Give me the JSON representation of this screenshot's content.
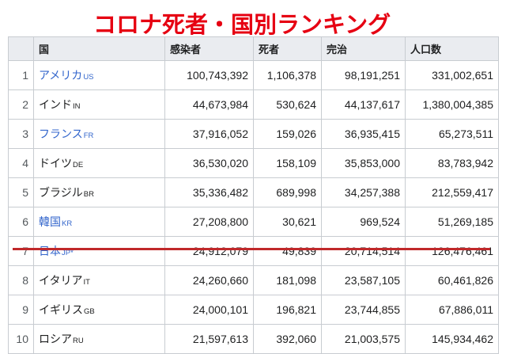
{
  "title": "コロナ死者・国別ランキング",
  "colors": {
    "title": "#e60012",
    "link": "#3366cc",
    "highlight_line": "#c0282a",
    "header_bg": "#eaecf0"
  },
  "table": {
    "headers": [
      "",
      "国",
      "感染者",
      "死者",
      "完治",
      "人口数"
    ],
    "rows": [
      {
        "rank": "1",
        "country": "アメリカ",
        "code": "US",
        "linked": true,
        "cases": "100,743,392",
        "deaths": "1,106,378",
        "recovered": "98,191,251",
        "population": "331,002,651"
      },
      {
        "rank": "2",
        "country": "インド",
        "code": "IN",
        "linked": false,
        "cases": "44,673,984",
        "deaths": "530,624",
        "recovered": "44,137,617",
        "population": "1,380,004,385"
      },
      {
        "rank": "3",
        "country": "フランス",
        "code": "FR",
        "linked": true,
        "cases": "37,916,052",
        "deaths": "159,026",
        "recovered": "36,935,415",
        "population": "65,273,511"
      },
      {
        "rank": "4",
        "country": "ドイツ",
        "code": "DE",
        "linked": false,
        "cases": "36,530,020",
        "deaths": "158,109",
        "recovered": "35,853,000",
        "population": "83,783,942"
      },
      {
        "rank": "5",
        "country": "ブラジル",
        "code": "BR",
        "linked": false,
        "cases": "35,336,482",
        "deaths": "689,998",
        "recovered": "34,257,388",
        "population": "212,559,417"
      },
      {
        "rank": "6",
        "country": "韓国",
        "code": "KR",
        "linked": true,
        "cases": "27,208,800",
        "deaths": "30,621",
        "recovered": "969,524",
        "population": "51,269,185"
      },
      {
        "rank": "7",
        "country": "日本",
        "code": "JP*",
        "linked": true,
        "cases": "24,912,079",
        "deaths": "49,839",
        "recovered": "20,714,514",
        "population": "126,476,461"
      },
      {
        "rank": "8",
        "country": "イタリア",
        "code": "IT",
        "linked": false,
        "cases": "24,260,660",
        "deaths": "181,098",
        "recovered": "23,587,105",
        "population": "60,461,826"
      },
      {
        "rank": "9",
        "country": "イギリス",
        "code": "GB",
        "linked": false,
        "cases": "24,000,101",
        "deaths": "196,821",
        "recovered": "23,744,855",
        "population": "67,886,011"
      },
      {
        "rank": "10",
        "country": "ロシア",
        "code": "RU",
        "linked": false,
        "cases": "21,597,613",
        "deaths": "392,060",
        "recovered": "21,003,575",
        "population": "145,934,462"
      }
    ]
  }
}
